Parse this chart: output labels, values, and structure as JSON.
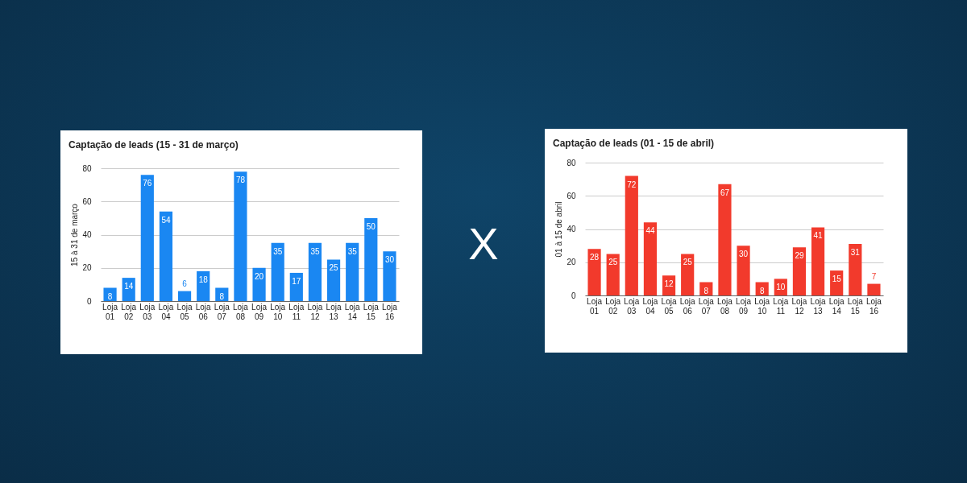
{
  "chart_data": [
    {
      "type": "bar",
      "title": "Captação de leads (15 - 31 de março)",
      "ylabel": "15 à 31 de março",
      "categories": [
        "Loja 01",
        "Loja 02",
        "Loja 03",
        "Loja 04",
        "Loja 05",
        "Loja 06",
        "Loja 07",
        "Loja 08",
        "Loja 09",
        "Loja 10",
        "Loja 11",
        "Loja 12",
        "Loja 13",
        "Loja 14",
        "Loja 15",
        "Loja 16"
      ],
      "values": [
        8,
        14,
        76,
        54,
        6,
        18,
        8,
        78,
        20,
        35,
        17,
        35,
        25,
        35,
        50,
        30
      ],
      "color": "#1a87f2",
      "ylim": [
        0,
        80
      ],
      "yticks": [
        0,
        20,
        40,
        60,
        80
      ],
      "grid": "y",
      "data_labels": true
    },
    {
      "type": "other",
      "annotations": [
        "X"
      ]
    },
    {
      "type": "bar",
      "title": "Captação de leads (01 - 15 de abril)",
      "ylabel": "01 à 15 de abril",
      "categories": [
        "Loja 01",
        "Loja 02",
        "Loja 03",
        "Loja 04",
        "Loja 05",
        "Loja 06",
        "Loja 07",
        "Loja 08",
        "Loja 09",
        "Loja 10",
        "Loja 11",
        "Loja 12",
        "Loja 13",
        "Loja 14",
        "Loja 15",
        "Loja 16"
      ],
      "values": [
        28,
        25,
        72,
        44,
        12,
        25,
        8,
        67,
        30,
        8,
        10,
        29,
        41,
        15,
        31,
        7
      ],
      "color": "#f23a2c",
      "ylim": [
        0,
        80
      ],
      "yticks": [
        0,
        20,
        40,
        60,
        80
      ],
      "grid": "y",
      "data_labels": true
    }
  ]
}
